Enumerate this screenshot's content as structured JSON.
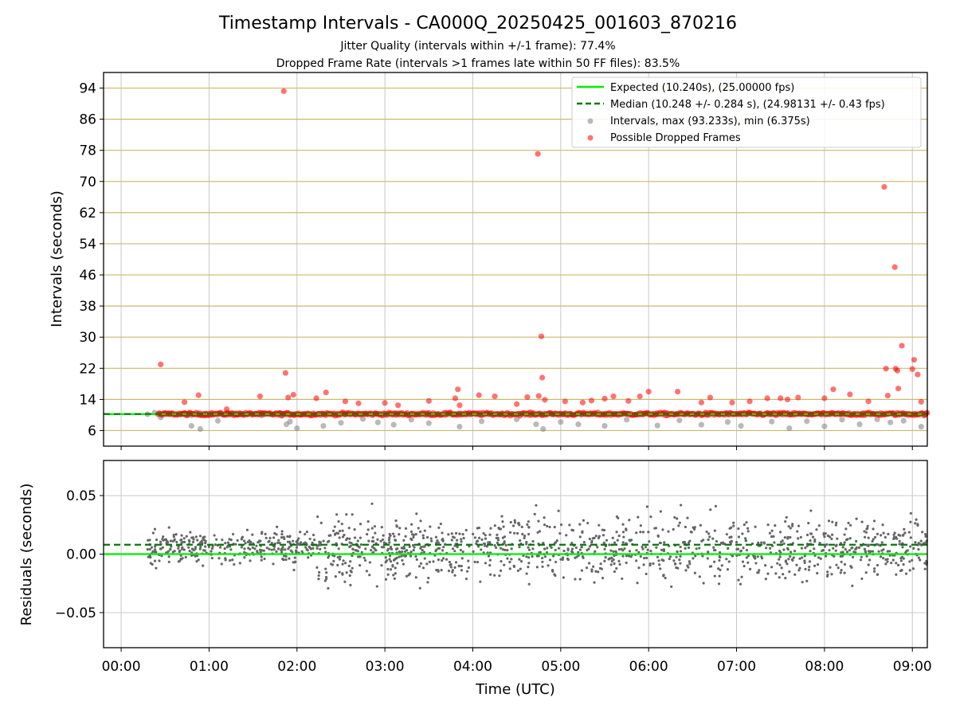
{
  "chart_data": {
    "type": "scatter",
    "title": "Timestamp Intervals - CA000Q_20250425_001603_870216",
    "subtitle_lines": [
      "Jitter Quality (intervals within +/-1 frame): 77.4%",
      "Dropped Frame Rate (intervals >1 frames late within 50 FF files): 83.5%"
    ],
    "xlabel": "Time (UTC)",
    "x_ticks": [
      "00:00",
      "01:00",
      "02:00",
      "03:00",
      "04:00",
      "05:00",
      "06:00",
      "07:00",
      "08:00",
      "09:00"
    ],
    "xlim_hours": [
      -0.2,
      9.17
    ],
    "top": {
      "ylabel": "Intervals (seconds)",
      "ylim": [
        2,
        98
      ],
      "y_ticks": [
        "6",
        "14",
        "22",
        "30",
        "38",
        "46",
        "54",
        "62",
        "70",
        "78",
        "86",
        "94"
      ],
      "grid": true,
      "legend_placement": "top-right",
      "legend": [
        "Expected (10.240s), (25.00000 fps)",
        "Median (10.248 +/- 0.284 s), (24.98131 +/- 0.43 fps)",
        "Intervals, max (93.233s), min (6.375s)",
        "Possible Dropped Frames"
      ],
      "expected_value": 10.24,
      "median_value": 10.248,
      "series_intervals": {
        "color": "#808080",
        "points": [
          [
            0.3,
            10.2
          ],
          [
            0.38,
            10.6
          ],
          [
            0.45,
            9.4
          ],
          [
            0.55,
            10.3
          ],
          [
            0.72,
            10.2
          ],
          [
            0.8,
            7.2
          ],
          [
            0.9,
            6.4
          ],
          [
            0.95,
            9.8
          ],
          [
            1.1,
            8.5
          ],
          [
            1.2,
            10.6
          ],
          [
            1.35,
            10.3
          ],
          [
            1.6,
            9.9
          ],
          [
            1.88,
            7.6
          ],
          [
            1.92,
            8.3
          ],
          [
            2.0,
            6.6
          ],
          [
            2.3,
            7.2
          ],
          [
            2.5,
            8.0
          ],
          [
            2.75,
            9.0
          ],
          [
            2.92,
            8.1
          ],
          [
            3.1,
            7.5
          ],
          [
            3.3,
            8.8
          ],
          [
            3.5,
            7.9
          ],
          [
            3.85,
            7.0
          ],
          [
            4.1,
            8.4
          ],
          [
            4.5,
            8.9
          ],
          [
            4.72,
            7.6
          ],
          [
            4.8,
            6.4
          ],
          [
            5.0,
            8.2
          ],
          [
            5.2,
            7.6
          ],
          [
            5.5,
            7.2
          ],
          [
            5.75,
            8.8
          ],
          [
            6.1,
            7.3
          ],
          [
            6.35,
            8.6
          ],
          [
            6.6,
            7.5
          ],
          [
            6.9,
            8.2
          ],
          [
            7.05,
            7.2
          ],
          [
            7.4,
            8.3
          ],
          [
            7.6,
            6.6
          ],
          [
            7.8,
            8.4
          ],
          [
            8.0,
            7.1
          ],
          [
            8.2,
            8.8
          ],
          [
            8.4,
            7.6
          ],
          [
            8.6,
            8.9
          ],
          [
            8.75,
            8.1
          ],
          [
            8.9,
            8.5
          ],
          [
            9.1,
            7.0
          ]
        ]
      },
      "series_dropped": {
        "color": "#ff0000",
        "points": [
          [
            0.45,
            23.0
          ],
          [
            0.72,
            13.3
          ],
          [
            0.88,
            15.1
          ],
          [
            1.2,
            11.5
          ],
          [
            1.58,
            14.8
          ],
          [
            1.85,
            93.2
          ],
          [
            1.87,
            20.8
          ],
          [
            1.9,
            14.5
          ],
          [
            1.96,
            15.2
          ],
          [
            2.22,
            14.3
          ],
          [
            2.33,
            15.8
          ],
          [
            2.55,
            13.5
          ],
          [
            2.7,
            13.0
          ],
          [
            3.0,
            13.1
          ],
          [
            3.15,
            12.5
          ],
          [
            3.5,
            13.6
          ],
          [
            3.8,
            14.3
          ],
          [
            3.83,
            16.6
          ],
          [
            3.85,
            12.5
          ],
          [
            4.07,
            15.1
          ],
          [
            4.25,
            14.8
          ],
          [
            4.5,
            12.8
          ],
          [
            4.62,
            14.6
          ],
          [
            4.74,
            77.1
          ],
          [
            4.75,
            14.9
          ],
          [
            4.78,
            30.2
          ],
          [
            4.79,
            19.6
          ],
          [
            4.82,
            13.9
          ],
          [
            5.05,
            13.5
          ],
          [
            5.25,
            13.2
          ],
          [
            5.35,
            13.7
          ],
          [
            5.5,
            14.2
          ],
          [
            5.6,
            14.8
          ],
          [
            5.77,
            13.6
          ],
          [
            5.9,
            14.8
          ],
          [
            6.0,
            16.0
          ],
          [
            6.33,
            16.0
          ],
          [
            6.6,
            13.2
          ],
          [
            6.7,
            14.5
          ],
          [
            6.95,
            13.2
          ],
          [
            7.15,
            13.5
          ],
          [
            7.35,
            14.3
          ],
          [
            7.5,
            14.3
          ],
          [
            7.58,
            14.0
          ],
          [
            7.7,
            14.5
          ],
          [
            8.0,
            14.3
          ],
          [
            8.1,
            16.6
          ],
          [
            8.29,
            15.3
          ],
          [
            8.5,
            13.5
          ],
          [
            8.68,
            68.6
          ],
          [
            8.7,
            21.9
          ],
          [
            8.72,
            15.0
          ],
          [
            8.8,
            48.0
          ],
          [
            8.81,
            21.9
          ],
          [
            8.83,
            21.4
          ],
          [
            8.84,
            16.8
          ],
          [
            8.88,
            27.8
          ],
          [
            9.0,
            21.8
          ],
          [
            9.02,
            24.2
          ],
          [
            9.06,
            20.4
          ],
          [
            9.1,
            13.4
          ]
        ]
      },
      "series_baseline": {
        "color": "#ff0000",
        "x_range": [
          0.42,
          9.17
        ],
        "y_value": 10.25,
        "jitter": 0.5
      }
    },
    "bottom": {
      "ylabel": "Residuals (seconds)",
      "ylim": [
        -0.08,
        0.08
      ],
      "y_ticks": [
        "0.05",
        "0.00",
        "−0.05"
      ],
      "grid": true,
      "expected_value": 0.0,
      "median_value": 0.008,
      "series_residuals": {
        "color": "#666666",
        "x_range": [
          0.3,
          9.17
        ],
        "center": 0.005,
        "spread": 0.022,
        "count": 1500
      }
    },
    "colors": {
      "expected_line": "#00ee00",
      "median_line": "#007a00",
      "top_grid": "#ccb86a",
      "bottom_grid": "#c8c8c8"
    }
  }
}
